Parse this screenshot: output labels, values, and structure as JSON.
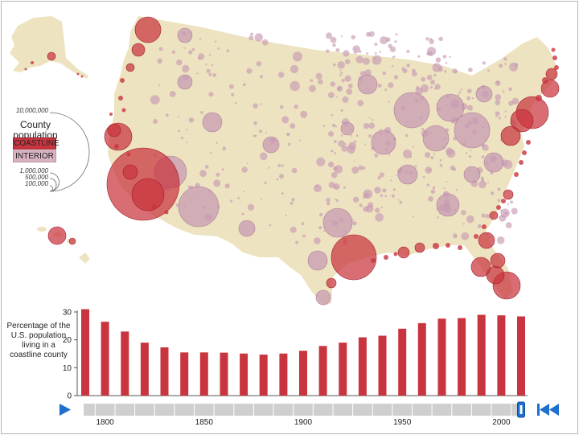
{
  "legend": {
    "title": "County population",
    "coastline_label": "COASTLINE",
    "interior_label": "INTERIOR",
    "scale_values": [
      "10,000,000",
      "1,000,000",
      "500,000",
      "100,000"
    ]
  },
  "colors": {
    "coastline": "#c9353f",
    "interior": "#c79bb3",
    "land": "#ede3c0",
    "bar": "#c9353f",
    "timeline": "#cfcfcf",
    "control": "#1f6fce"
  },
  "controls": {
    "play_icon": "play-icon",
    "rewind_icon": "rewind-to-start-icon",
    "slider_year": 2010
  },
  "chart_data": {
    "type": "bar",
    "title": "",
    "ylabel": "Percentage of the U.S. population living in a coastline county",
    "xlabel": "",
    "ylim": [
      0,
      30
    ],
    "yticks": [
      0,
      10,
      20,
      30
    ],
    "xticks": [
      1800,
      1850,
      1900,
      1950,
      2000
    ],
    "categories": [
      1790,
      1800,
      1810,
      1820,
      1830,
      1840,
      1850,
      1860,
      1870,
      1880,
      1890,
      1900,
      1910,
      1920,
      1930,
      1940,
      1950,
      1960,
      1970,
      1980,
      1990,
      2000,
      2010
    ],
    "values": [
      31,
      26.5,
      23,
      19,
      17.3,
      15.5,
      15.5,
      15.4,
      15.1,
      14.7,
      15.1,
      16.1,
      17.8,
      19,
      20.9,
      21.5,
      24,
      26,
      27.6,
      27.8,
      29,
      28.8,
      28.4
    ]
  }
}
